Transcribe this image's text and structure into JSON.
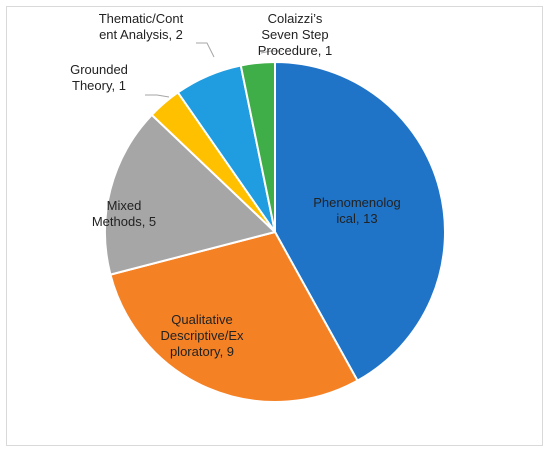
{
  "chart_data": {
    "type": "pie",
    "title": "",
    "start_angle_deg": 0,
    "direction": "clockwise",
    "slices": [
      {
        "name": "Phenomenological",
        "value": 13,
        "color": "#1f74c8",
        "label_lines": [
          "Phenomenolog",
          "ical, 13"
        ]
      },
      {
        "name": "Qualitative Descriptive/Exploratory",
        "value": 9,
        "color": "#f58125",
        "label_lines": [
          "Qualitative",
          "Descriptive/Ex",
          "ploratory, 9"
        ]
      },
      {
        "name": "Mixed Methods",
        "value": 5,
        "color": "#a6a6a6",
        "label_lines": [
          "Mixed",
          "Methods, 5"
        ]
      },
      {
        "name": "Grounded Theory",
        "value": 1,
        "color": "#ffc000",
        "label_lines": [
          "Grounded",
          "Theory, 1"
        ]
      },
      {
        "name": "Thematic/Content Analysis",
        "value": 2,
        "color": "#1f9de0",
        "label_lines": [
          "Thematic/Cont",
          "ent Analysis, 2"
        ]
      },
      {
        "name": "Colaizzi's Seven Step Procedure",
        "value": 1,
        "color": "#3fae49",
        "label_lines": [
          "Colaizzi’s",
          "Seven Step",
          "Procedure, 1"
        ]
      }
    ]
  }
}
